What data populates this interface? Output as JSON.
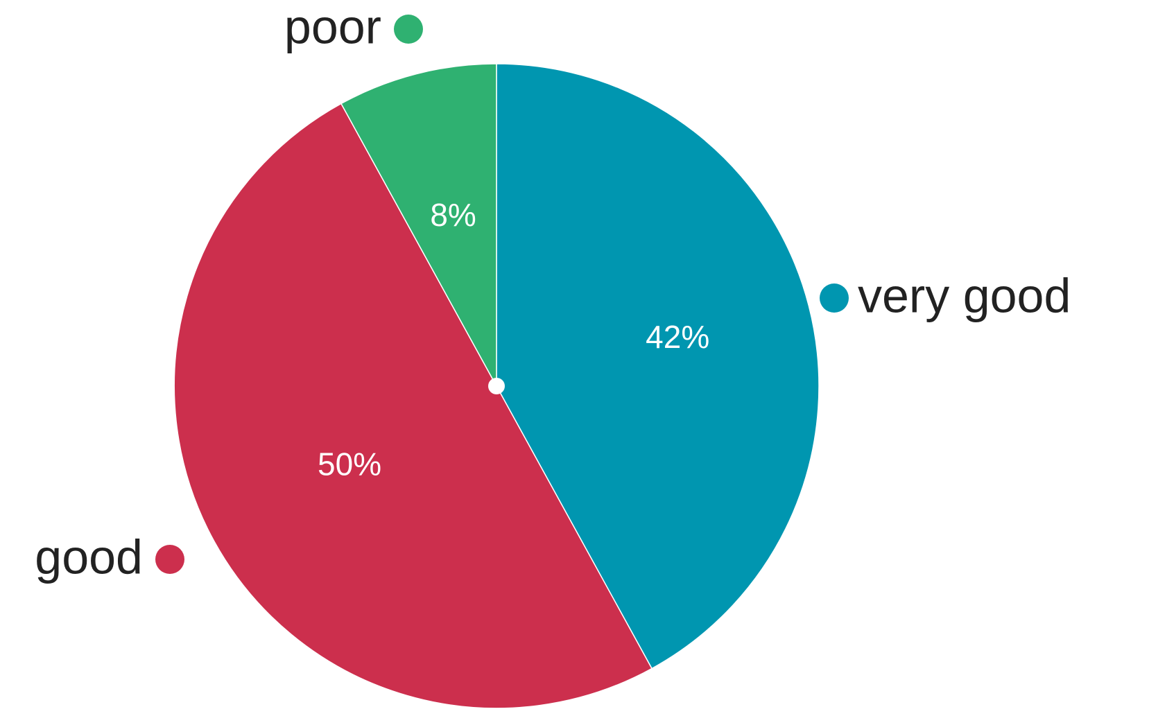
{
  "chart_data": {
    "type": "pie",
    "slices": [
      {
        "label": "very good",
        "value": 42,
        "display": "42%",
        "color": "#0096B0"
      },
      {
        "label": "good",
        "value": 50,
        "display": "50%",
        "color": "#CC2F4D"
      },
      {
        "label": "poor",
        "value": 8,
        "display": "8%",
        "color": "#2FB171"
      }
    ],
    "legend": "labels placed beside slices"
  }
}
